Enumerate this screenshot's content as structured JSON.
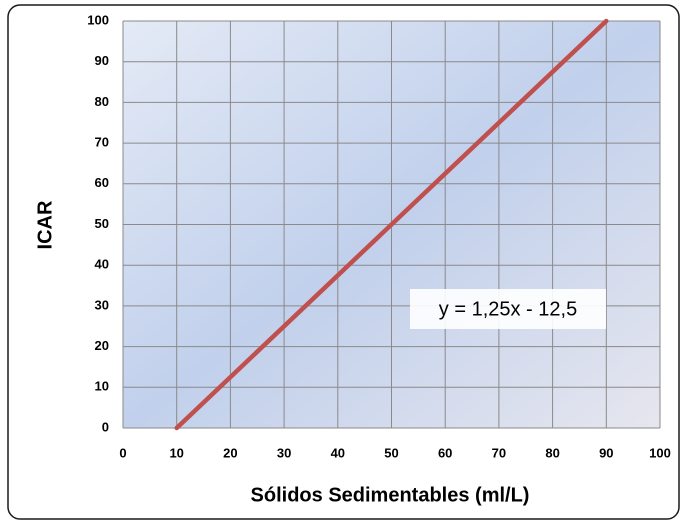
{
  "chart_data": {
    "type": "line",
    "x_label": "Sólidos Sedimentables (ml/L)",
    "y_label": "ICAR",
    "annotation": "y = 1,25x - 12,5",
    "x": [
      10,
      90
    ],
    "series": [
      {
        "name": "ICAR",
        "color": "#c0504d",
        "values": [
          0,
          100
        ]
      }
    ],
    "xlim": [
      0,
      100
    ],
    "xticks": [
      0,
      10,
      20,
      30,
      40,
      50,
      60,
      70,
      80,
      90,
      100
    ],
    "ylim": [
      0,
      100
    ],
    "yticks": [
      0,
      10,
      20,
      30,
      40,
      50,
      60,
      70,
      80,
      90,
      100
    ],
    "grid": true
  }
}
